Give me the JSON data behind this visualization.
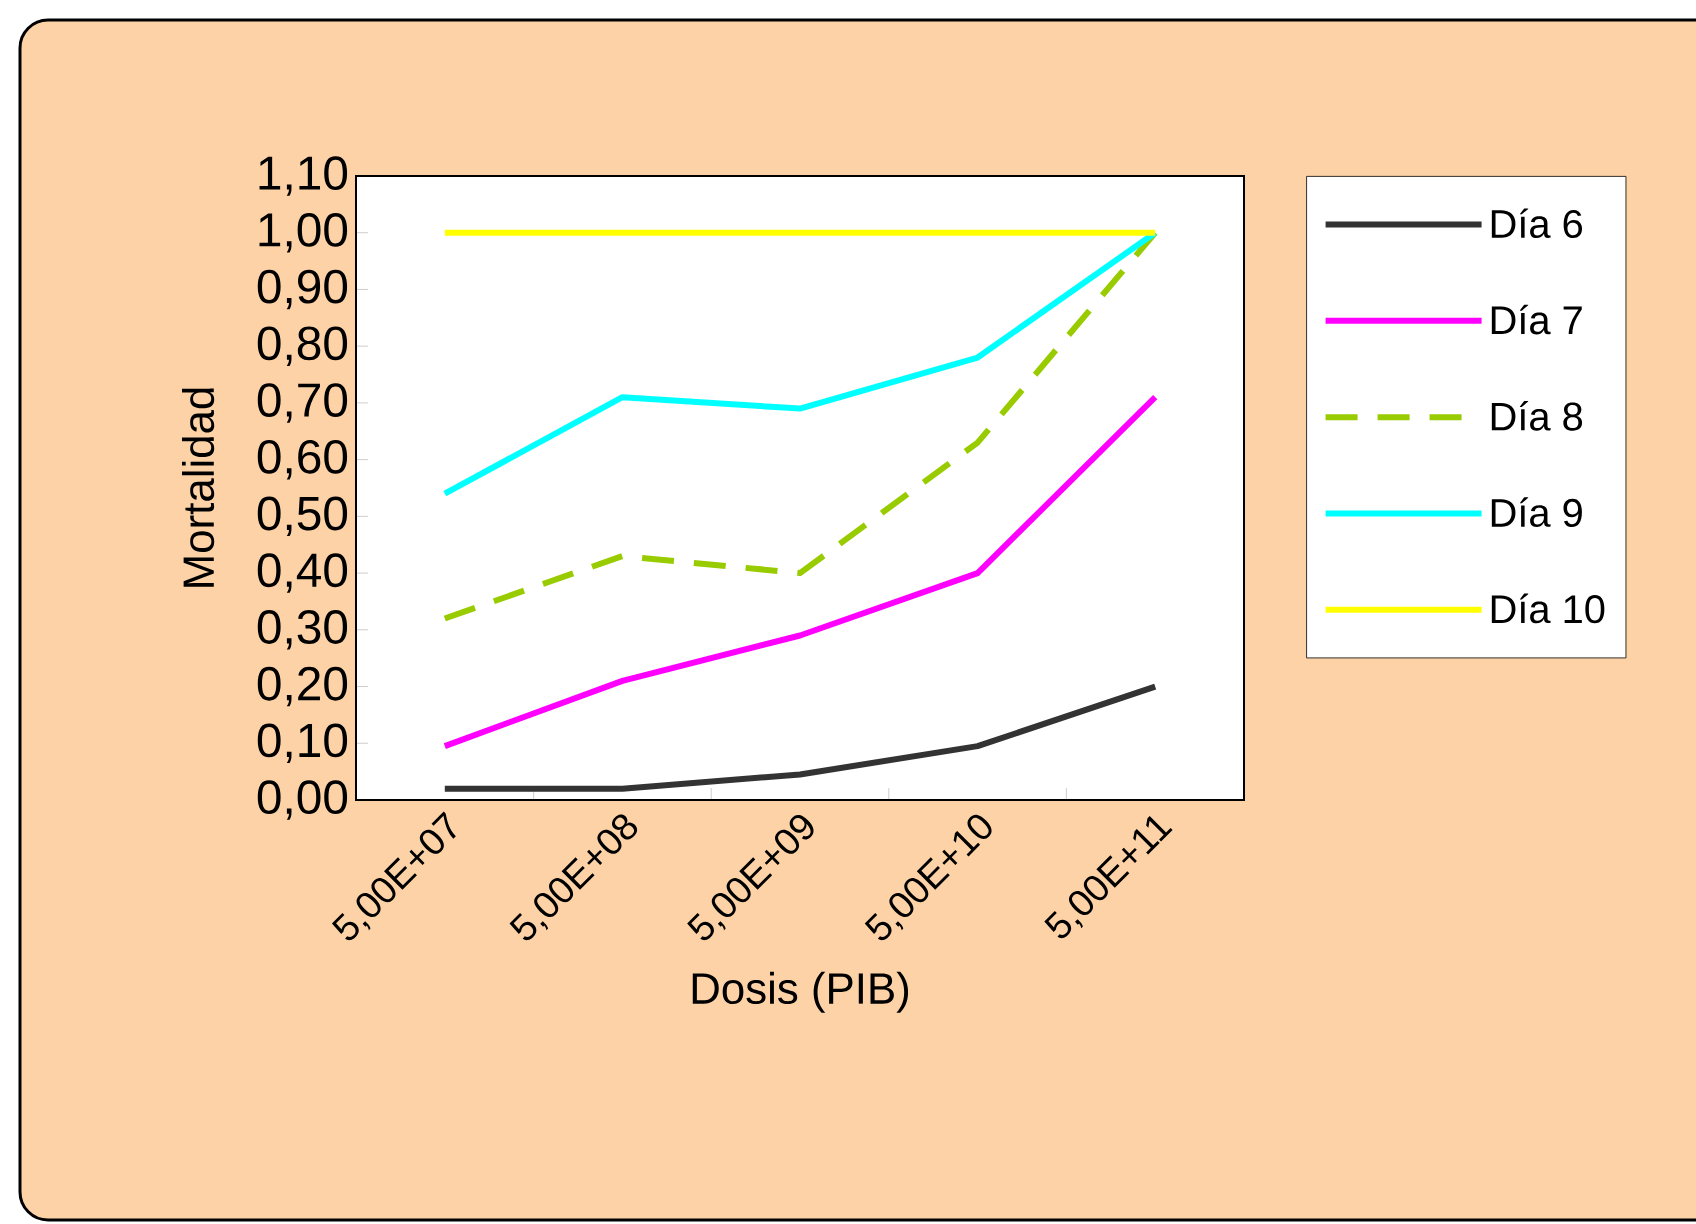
{
  "chart_data": {
    "type": "line",
    "xlabel": "Dosis (PIB)",
    "ylabel": "Mortalidad",
    "categories": [
      "5,00E+07",
      "5,00E+08",
      "5,00E+09",
      "5,00E+10",
      "5,00E+11"
    ],
    "series": [
      {
        "name": "Día 6",
        "color": "#333333",
        "values": [
          0.02,
          0.02,
          0.045,
          0.095,
          0.2
        ]
      },
      {
        "name": "Día 7",
        "color": "#ff00ff",
        "values": [
          0.095,
          0.21,
          0.29,
          0.4,
          0.71
        ]
      },
      {
        "name": "Día 8",
        "color": "#99cc00",
        "line_style": "dashed",
        "values": [
          0.32,
          0.43,
          0.4,
          0.63,
          1.0
        ]
      },
      {
        "name": "Día 9",
        "color": "#00ffff",
        "values": [
          0.54,
          0.71,
          0.69,
          0.78,
          1.0
        ]
      },
      {
        "name": "Día 10",
        "color": "#ffff00",
        "values": [
          1.0,
          1.0,
          1.0,
          1.0,
          1.0
        ]
      }
    ],
    "ylim": [
      0,
      1.1
    ],
    "yticks": [
      {
        "value": 0,
        "label": "0,00"
      },
      {
        "value": 0.1,
        "label": "0,10"
      },
      {
        "value": 0.2,
        "label": "0,20"
      },
      {
        "value": 0.3,
        "label": "0,30"
      },
      {
        "value": 0.4,
        "label": "0,40"
      },
      {
        "value": 0.5,
        "label": "0,50"
      },
      {
        "value": 0.6,
        "label": "0,60"
      },
      {
        "value": 0.7,
        "label": "0,70"
      },
      {
        "value": 0.8,
        "label": "0,80"
      },
      {
        "value": 0.9,
        "label": "0,90"
      },
      {
        "value": 1.0,
        "label": "1,00"
      },
      {
        "value": 1.1,
        "label": "1,10"
      }
    ],
    "grid": false,
    "legend": "right",
    "marker": "none",
    "line_style": "solid"
  }
}
